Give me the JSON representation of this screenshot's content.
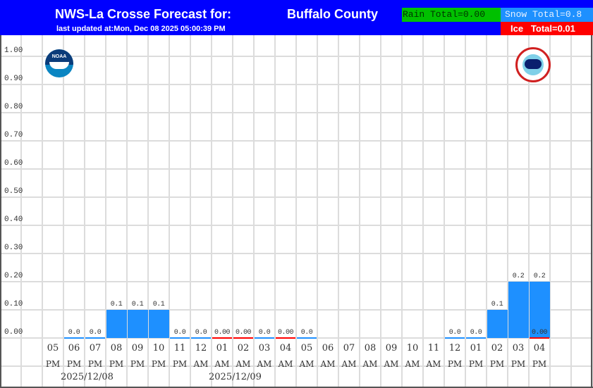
{
  "header": {
    "title": "NWS-La Crosse Forecast for:",
    "location": "Buffalo County",
    "last_updated": "last updated at:Mon, Dec 08 2025 05:00:39 PM",
    "rain_total": "Rain Total=0.00",
    "snow_total": "Snow Total=0.8",
    "ice_total": "Ice   Total=0.01",
    "colors": {
      "header_bg": "#0000ff",
      "rain": "#00c000",
      "snow": "#1e90ff",
      "ice": "#ff0000"
    }
  },
  "logos": {
    "left": "noaa-logo",
    "right": "nws-logo",
    "noaa_text": "NOAA"
  },
  "chart_data": {
    "type": "bar",
    "title": "NWS-La Crosse Forecast for: Buffalo County",
    "xlabel": "",
    "ylabel": "",
    "ylim": [
      0,
      1.05
    ],
    "grid": true,
    "yticks": [
      "1.00",
      "0.90",
      "0.80",
      "0.70",
      "0.60",
      "0.50",
      "0.40",
      "0.30",
      "0.20",
      "0.10",
      "0.00"
    ],
    "categories": [
      "05 PM",
      "06 PM",
      "07 PM",
      "08 PM",
      "09 PM",
      "10 PM",
      "11 PM",
      "12 AM",
      "01 AM",
      "02 AM",
      "03 AM",
      "04 AM",
      "05 AM",
      "06 AM",
      "07 AM",
      "08 AM",
      "09 AM",
      "10 AM",
      "11 AM",
      "12 PM",
      "01 PM",
      "02 PM",
      "03 PM",
      "04 PM"
    ],
    "hours": [
      "05",
      "06",
      "07",
      "08",
      "09",
      "10",
      "11",
      "12",
      "01",
      "02",
      "03",
      "04",
      "05",
      "06",
      "07",
      "08",
      "09",
      "10",
      "11",
      "12",
      "01",
      "02",
      "03",
      "04"
    ],
    "ampm": [
      "PM",
      "PM",
      "PM",
      "PM",
      "PM",
      "PM",
      "PM",
      "AM",
      "AM",
      "AM",
      "AM",
      "AM",
      "AM",
      "AM",
      "AM",
      "AM",
      "AM",
      "AM",
      "AM",
      "PM",
      "PM",
      "PM",
      "PM",
      "PM"
    ],
    "dates": [
      {
        "label": "2025/12/08"
      },
      {
        "label": "2025/12/09"
      }
    ],
    "series": [
      {
        "name": "Snow",
        "color": "#1e90ff",
        "values": [
          null,
          0.0,
          0.0,
          0.1,
          0.1,
          0.1,
          0.0,
          0.0,
          null,
          null,
          0.0,
          null,
          0.0,
          null,
          null,
          null,
          null,
          null,
          null,
          0.0,
          0.0,
          0.1,
          0.2,
          0.2
        ],
        "labels": [
          "",
          "0.0",
          "0.0",
          "0.1",
          "0.1",
          "0.1",
          "0.0",
          "0.0",
          "",
          "",
          "0.0",
          "",
          "0.0",
          "",
          "",
          "",
          "",
          "",
          "",
          "0.0",
          "0.0",
          "0.1",
          "0.2",
          "0.2"
        ]
      },
      {
        "name": "Ice",
        "color": "#ff0000",
        "values": [
          null,
          null,
          null,
          null,
          null,
          null,
          null,
          null,
          0.0,
          0.0,
          null,
          0.0,
          null,
          null,
          null,
          null,
          null,
          null,
          null,
          null,
          null,
          null,
          null,
          0.0
        ],
        "labels": [
          "",
          "",
          "",
          "",
          "",
          "",
          "",
          "",
          "0.00",
          "0.00",
          "",
          "0.00",
          "",
          "",
          "",
          "",
          "",
          "",
          "",
          "",
          "",
          "",
          "",
          "0.00"
        ]
      }
    ]
  }
}
